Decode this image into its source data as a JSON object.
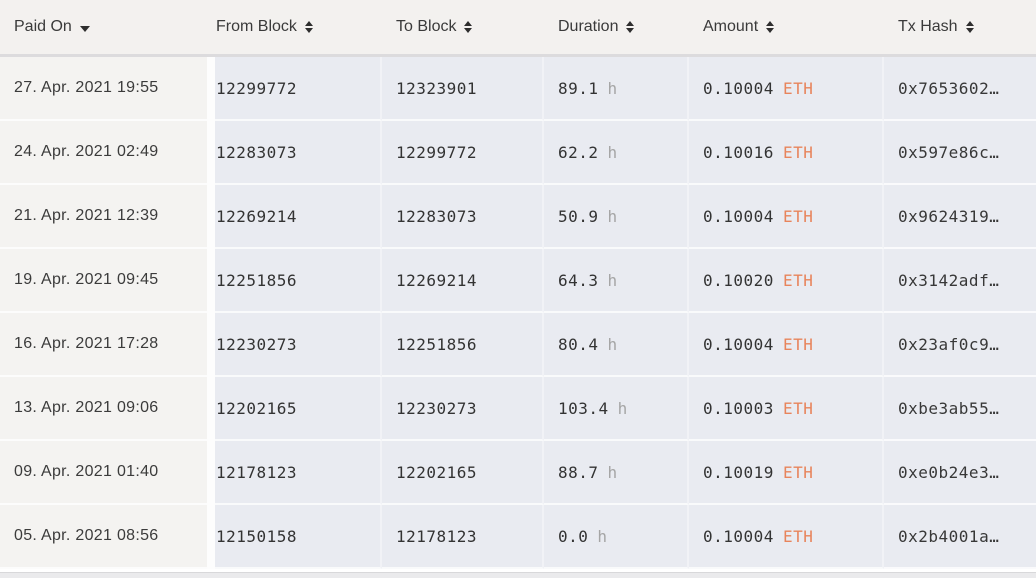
{
  "table": {
    "columns": [
      {
        "label": "Paid On",
        "sort": "desc"
      },
      {
        "label": "From Block",
        "sort": "sortable"
      },
      {
        "label": "To Block",
        "sort": "sortable"
      },
      {
        "label": "Duration",
        "sort": "sortable"
      },
      {
        "label": "Amount",
        "sort": "sortable"
      },
      {
        "label": "Tx Hash",
        "sort": "sortable"
      }
    ],
    "units": {
      "duration": "h",
      "currency": "ETH"
    },
    "rows": [
      {
        "paid_on": "27. Apr. 2021 19:55",
        "from_block": "12299772",
        "to_block": "12323901",
        "duration": "89.1",
        "amount": "0.10004",
        "tx_hash": "0x7653602…"
      },
      {
        "paid_on": "24. Apr. 2021 02:49",
        "from_block": "12283073",
        "to_block": "12299772",
        "duration": "62.2",
        "amount": "0.10016",
        "tx_hash": "0x597e86c…"
      },
      {
        "paid_on": "21. Apr. 2021 12:39",
        "from_block": "12269214",
        "to_block": "12283073",
        "duration": "50.9",
        "amount": "0.10004",
        "tx_hash": "0x9624319…"
      },
      {
        "paid_on": "19. Apr. 2021 09:45",
        "from_block": "12251856",
        "to_block": "12269214",
        "duration": "64.3",
        "amount": "0.10020",
        "tx_hash": "0x3142adf…"
      },
      {
        "paid_on": "16. Apr. 2021 17:28",
        "from_block": "12230273",
        "to_block": "12251856",
        "duration": "80.4",
        "amount": "0.10004",
        "tx_hash": "0x23af0c9…"
      },
      {
        "paid_on": "13. Apr. 2021 09:06",
        "from_block": "12202165",
        "to_block": "12230273",
        "duration": "103.4",
        "amount": "0.10003",
        "tx_hash": "0xbe3ab55…"
      },
      {
        "paid_on": "09. Apr. 2021 01:40",
        "from_block": "12178123",
        "to_block": "12202165",
        "duration": "88.7",
        "amount": "0.10019",
        "tx_hash": "0xe0b24e3…"
      },
      {
        "paid_on": "05. Apr. 2021 08:56",
        "from_block": "12150158",
        "to_block": "12178123",
        "duration": "0.0",
        "amount": "0.10004",
        "tx_hash": "0x2b4001a…"
      }
    ]
  },
  "colors": {
    "eth_accent": "#e8845c",
    "header_bg": "#f3f1ef",
    "date_col_bg": "#f4f3f1",
    "data_col_bg": "#e9ebf1",
    "unit_gray": "#a5a5a5"
  }
}
